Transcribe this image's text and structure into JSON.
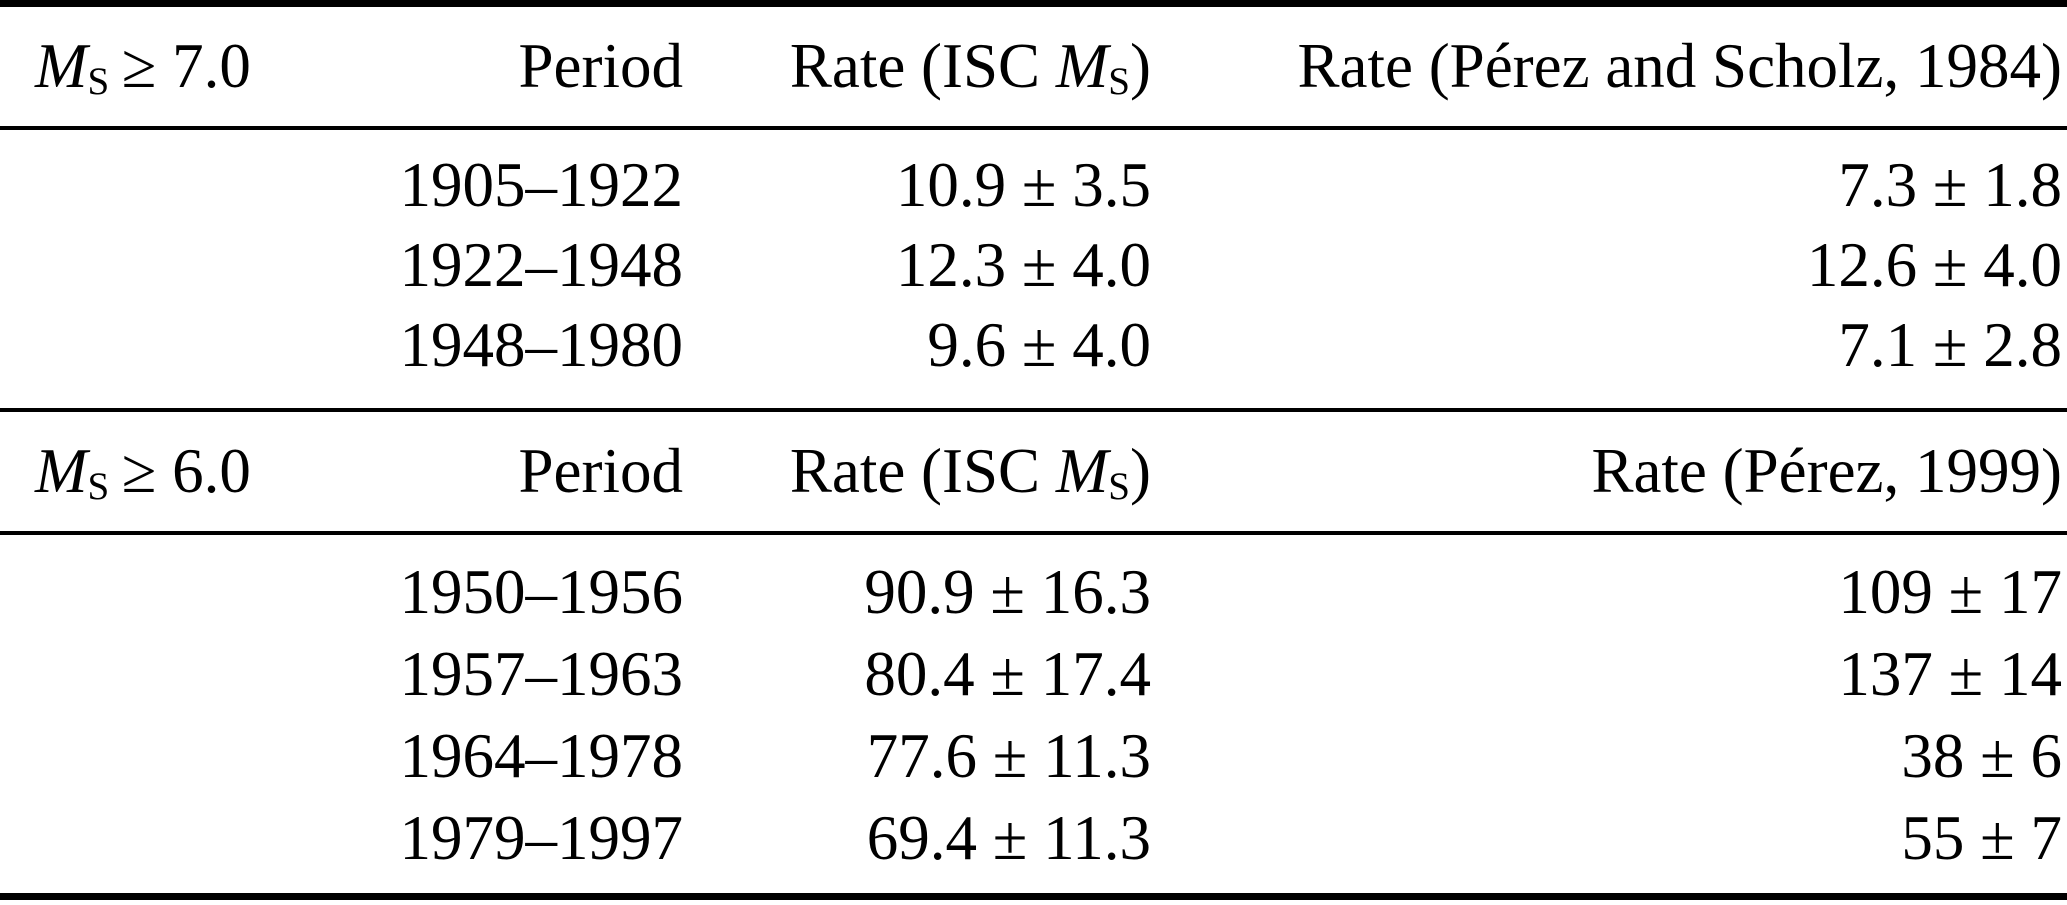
{
  "colors": {
    "text": "#000000",
    "background": "#ffffff",
    "rule": "#000000"
  },
  "table": {
    "sections": [
      {
        "threshold": {
          "symbol": "M",
          "subscript": "S",
          "condition": "≥ 7.0"
        },
        "headers": {
          "period": "Period",
          "rate_isc": {
            "prefix": "Rate (ISC ",
            "symbol": "M",
            "subscript": "S",
            "suffix": ")"
          },
          "rate_ref": "Rate (Pérez and Scholz, 1984)"
        },
        "rows": [
          {
            "period": "1905–1922",
            "rate_isc": "10.9 ± 3.5",
            "rate_ref": "7.3 ± 1.8"
          },
          {
            "period": "1922–1948",
            "rate_isc": "12.3 ± 4.0",
            "rate_ref": "12.6 ± 4.0"
          },
          {
            "period": "1948–1980",
            "rate_isc": "9.6 ± 4.0",
            "rate_ref": "7.1 ± 2.8"
          }
        ]
      },
      {
        "threshold": {
          "symbol": "M",
          "subscript": "S",
          "condition": "≥ 6.0"
        },
        "headers": {
          "period": "Period",
          "rate_isc": {
            "prefix": "Rate (ISC ",
            "symbol": "M",
            "subscript": "S",
            "suffix": ")"
          },
          "rate_ref": "Rate (Pérez, 1999)"
        },
        "rows": [
          {
            "period": "1950–1956",
            "rate_isc": "90.9 ± 16.3",
            "rate_ref": "109 ± 17"
          },
          {
            "period": "1957–1963",
            "rate_isc": "80.4 ± 17.4",
            "rate_ref": "137 ± 14"
          },
          {
            "period": "1964–1978",
            "rate_isc": "77.6 ± 11.3",
            "rate_ref": "38 ± 6"
          },
          {
            "period": "1979–1997",
            "rate_isc": "69.4 ± 11.3",
            "rate_ref": "55 ± 7"
          }
        ]
      }
    ]
  }
}
